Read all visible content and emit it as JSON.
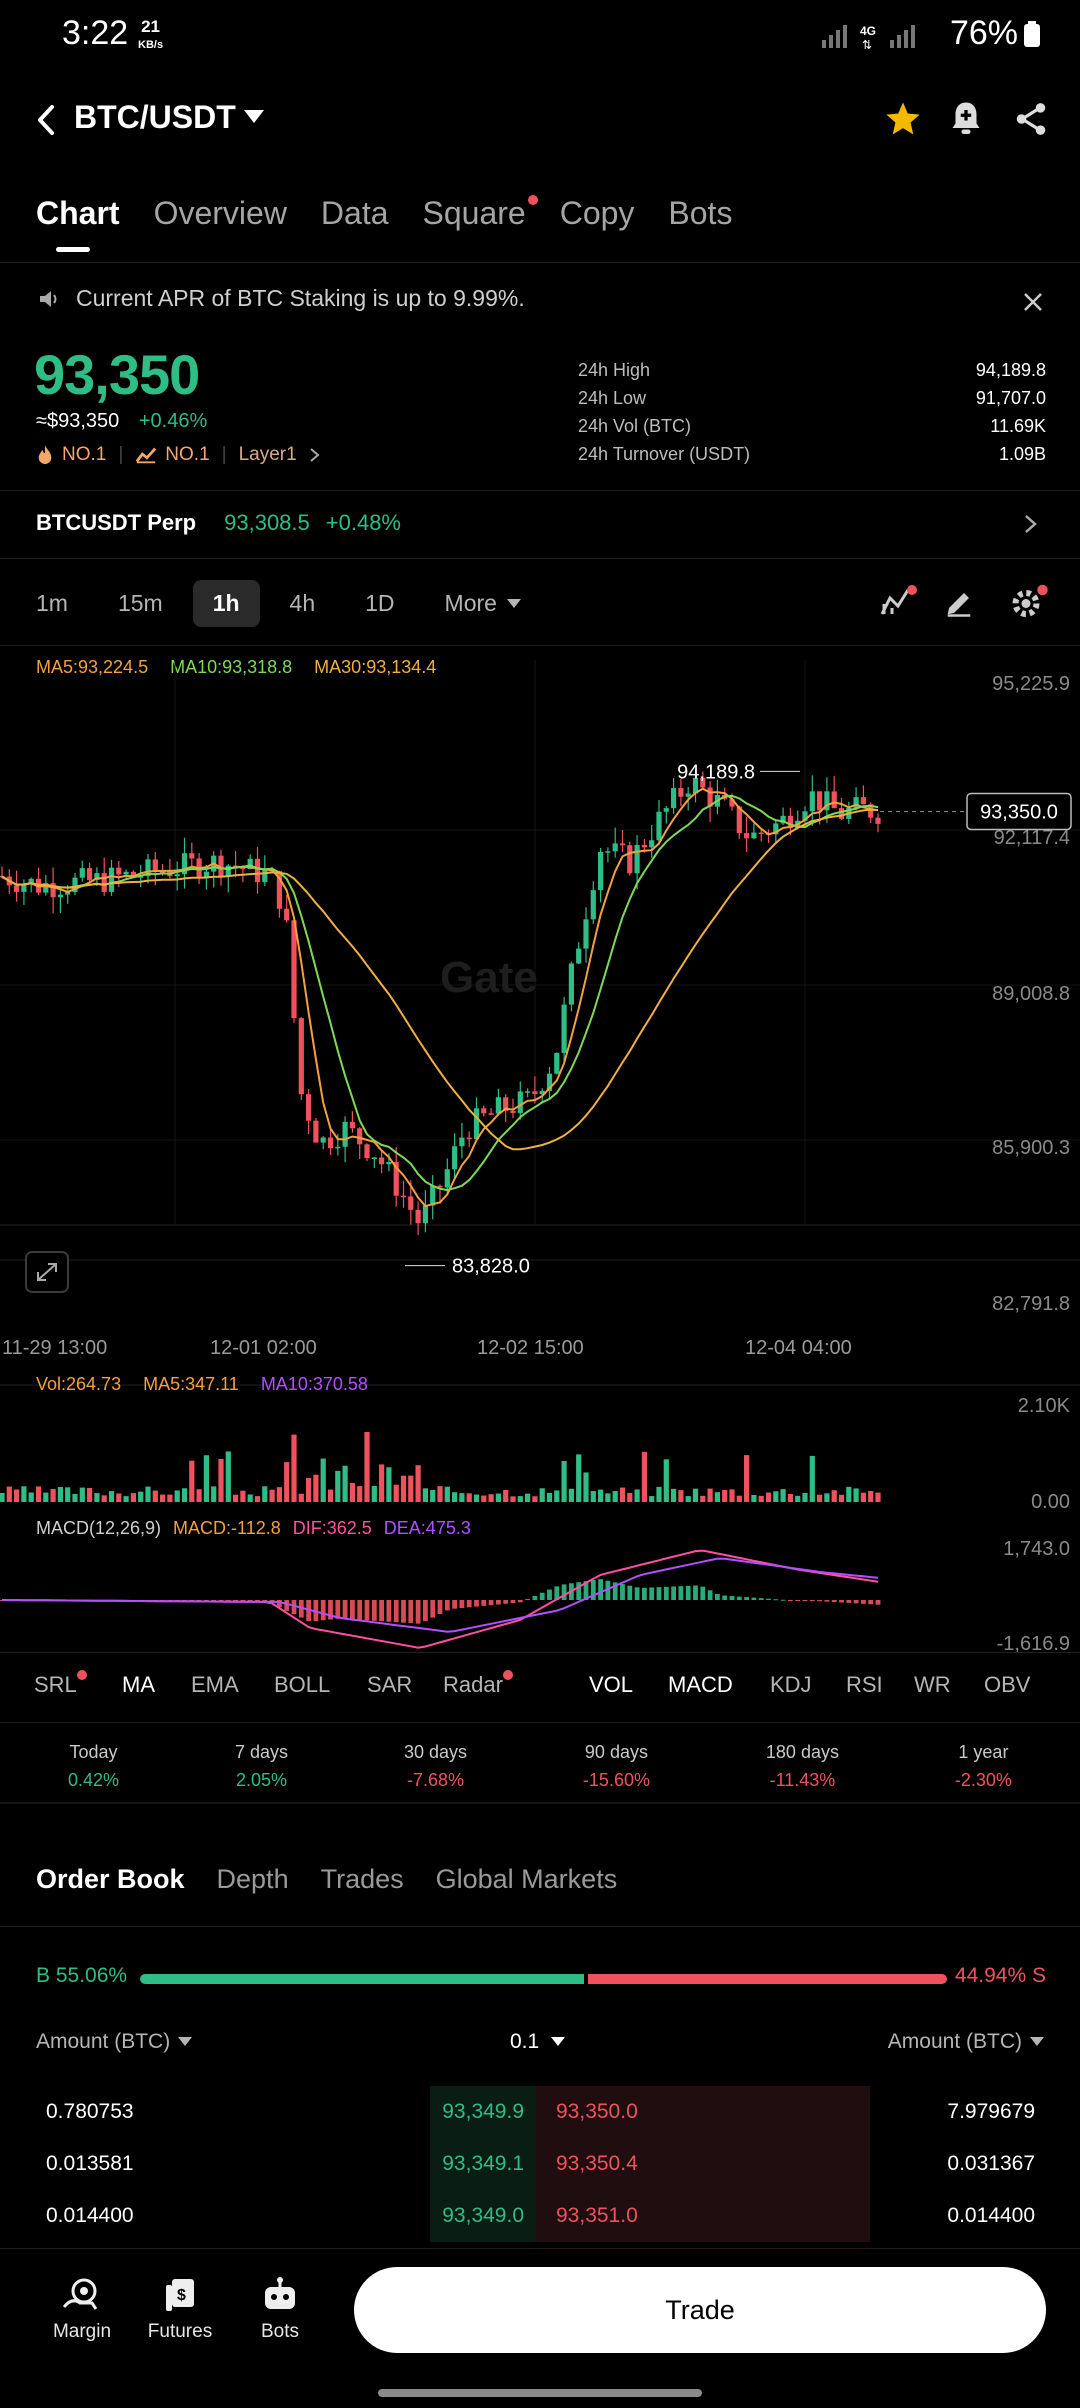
{
  "status_bar": {
    "time": "3:22",
    "speed_value": "21",
    "speed_unit": "KB/s",
    "network": "4G",
    "battery": "76%"
  },
  "header": {
    "pair": "BTC/USDT",
    "icons": [
      "back-arrow-icon",
      "dropdown-icon",
      "star-icon",
      "alert-bell-icon",
      "share-icon"
    ]
  },
  "tabs": [
    "Chart",
    "Overview",
    "Data",
    "Square",
    "Copy",
    "Bots"
  ],
  "notice": {
    "text": "Current APR of BTC Staking is up to 9.99%."
  },
  "ticker": {
    "price": "93,350",
    "fiat": "≈$93,350",
    "change": "+0.46%",
    "rank1": "NO.1",
    "rank2": "NO.1",
    "tag": "Layer1",
    "stats": [
      {
        "label": "24h High",
        "value": "94,189.8"
      },
      {
        "label": "24h Low",
        "value": "91,707.0"
      },
      {
        "label": "24h Vol (BTC)",
        "value": "11.69K"
      },
      {
        "label": "24h Turnover (USDT)",
        "value": "1.09B"
      }
    ]
  },
  "perp": {
    "name": "BTCUSDT Perp",
    "price": "93,308.5",
    "change": "+0.48%"
  },
  "intervals": [
    "1m",
    "15m",
    "1h",
    "4h",
    "1D",
    "More"
  ],
  "ma_legend": {
    "ma5": "MA5:93,224.5",
    "ma10": "MA10:93,318.8",
    "ma30": "MA30:93,134.4"
  },
  "price_axis": [
    "95,225.9",
    "92,117.4",
    "89,008.8",
    "85,900.3",
    "82,791.8"
  ],
  "current_price_label": "93,350.0",
  "high_label": "94,189.8",
  "low_label": "83,828.0",
  "watermark": "Gate",
  "time_axis": [
    "11-29 13:00",
    "12-01 02:00",
    "12-02 15:00",
    "12-04 04:00"
  ],
  "volume_legend": {
    "vol": "Vol:264.73",
    "ma5": "MA5:347.11",
    "ma10": "MA10:370.58"
  },
  "volume_axis": [
    "2.10K",
    "0.00"
  ],
  "macd_legend": {
    "name": "MACD(12,26,9)",
    "macd": "MACD:-112.8",
    "dif": "DIF:362.5",
    "dea": "DEA:475.3"
  },
  "macd_axis": [
    "1,743.0",
    "-1,616.9"
  ],
  "indicators": [
    "SRL",
    "MA",
    "EMA",
    "BOLL",
    "SAR",
    "Radar",
    "VOL",
    "MACD",
    "KDJ",
    "RSI",
    "WR",
    "OBV"
  ],
  "periods": [
    {
      "label": "Today",
      "value": "0.42%"
    },
    {
      "label": "7 days",
      "value": "2.05%"
    },
    {
      "label": "30 days",
      "value": "-7.68%"
    },
    {
      "label": "90 days",
      "value": "-15.60%"
    },
    {
      "label": "180 days",
      "value": "-11.43%"
    },
    {
      "label": "1 year",
      "value": "-2.30%"
    }
  ],
  "orderbook_tabs": [
    "Order Book",
    "Depth",
    "Trades",
    "Global Markets"
  ],
  "ratio": {
    "buy": "B 55.06%",
    "sell": "44.94% S",
    "buy_fraction": 0.5506
  },
  "orderbook_header": {
    "left": "Amount (BTC)",
    "mid": "0.1",
    "right": "Amount (BTC)"
  },
  "orderbook_rows": [
    {
      "bid_amount": "0.780753",
      "bid_price": "93,349.9",
      "ask_price": "93,350.0",
      "ask_amount": "7.979679"
    },
    {
      "bid_amount": "0.013581",
      "bid_price": "93,349.1",
      "ask_price": "93,350.4",
      "ask_amount": "0.031367"
    },
    {
      "bid_amount": "0.014400",
      "bid_price": "93,349.0",
      "ask_price": "93,351.0",
      "ask_amount": "0.014400"
    }
  ],
  "bottom_nav": {
    "margin": "Margin",
    "futures": "Futures",
    "bots": "Bots",
    "trade": "Trade"
  },
  "colors": {
    "up": "#2ebd85",
    "down": "#f0525d",
    "ma5": "#f5a040",
    "ma10": "#7ed957",
    "ma30": "#f0b040",
    "dif": "#ff4fa0",
    "dea": "#b050ff"
  }
}
